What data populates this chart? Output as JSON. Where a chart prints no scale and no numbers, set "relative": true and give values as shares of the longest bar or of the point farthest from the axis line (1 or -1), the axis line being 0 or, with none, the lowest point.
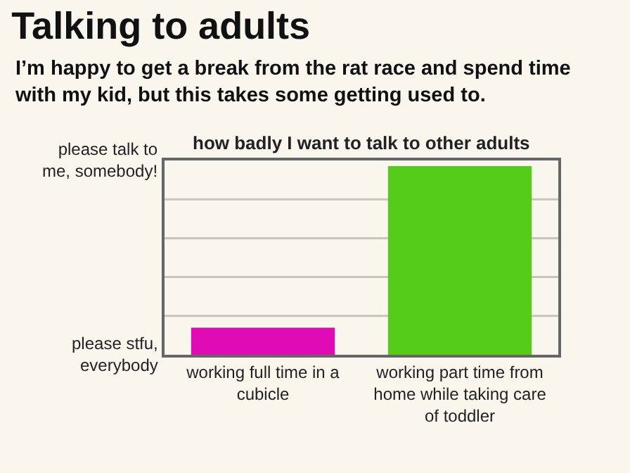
{
  "chart_data": {
    "type": "bar",
    "title": "Talking to adults",
    "subtitle": "I’m happy to get a break from the rat race and spend time with my kid, but this takes some getting used to.",
    "annotations": [
      "how badly I want to talk to other adults",
      "please talk to me, somebody!",
      "please stfu, everybody"
    ],
    "categories": [
      "working full time in a cubicle",
      "working part time from home while taking care of toddler"
    ],
    "values": [
      0.144,
      1
    ],
    "colors": [
      "#e00bb4",
      "#55cc1a"
    ],
    "relative": true,
    "grid": "y"
  }
}
